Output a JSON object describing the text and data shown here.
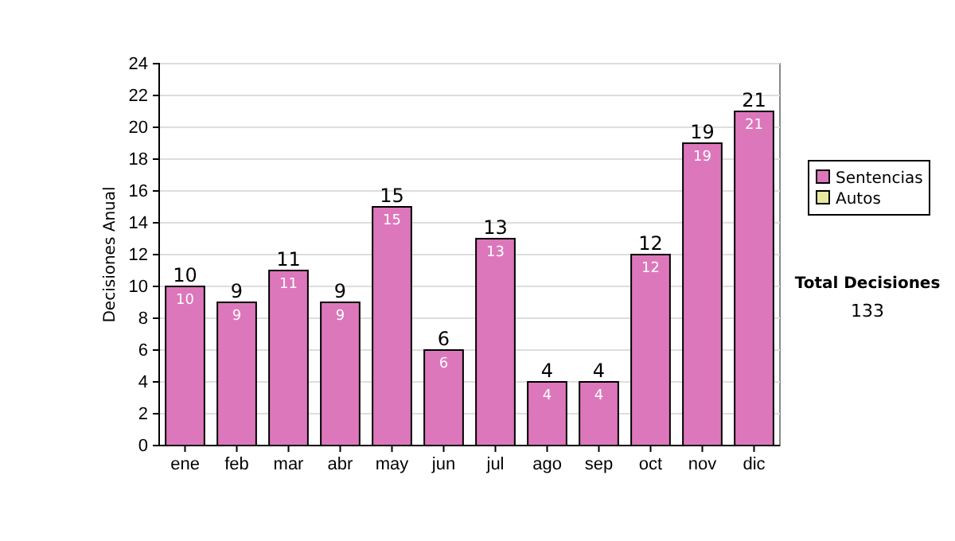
{
  "chart_data": {
    "type": "bar",
    "stacked": true,
    "ylabel": "Decisiones Anual",
    "categories": [
      "ene",
      "feb",
      "mar",
      "abr",
      "may",
      "jun",
      "jul",
      "ago",
      "sep",
      "oct",
      "nov",
      "dic"
    ],
    "series": [
      {
        "name": "Sentencias",
        "color": "#dd77bb",
        "values": [
          10,
          9,
          11,
          9,
          15,
          6,
          13,
          4,
          4,
          12,
          19,
          21
        ],
        "value_labels": [
          "10",
          "9",
          "11",
          "9",
          "15",
          "6",
          "13",
          "4",
          "4",
          "12",
          "19",
          "21"
        ]
      },
      {
        "name": "Autos",
        "color": "#e8e8a0",
        "values": [
          null,
          null,
          null,
          null,
          null,
          null,
          null,
          null,
          null,
          null,
          null,
          null
        ]
      }
    ],
    "totals": [
      "10",
      "9",
      "11",
      "9",
      "15",
      "6",
      "13",
      "4",
      "4",
      "12",
      "19",
      "21"
    ],
    "ylim": [
      0,
      24
    ],
    "yticks": [
      0,
      2,
      4,
      6,
      8,
      10,
      12,
      14,
      16,
      18,
      20,
      22,
      24
    ],
    "grid": "y",
    "legend": "right",
    "annotations": [
      "Total Decisiones",
      "133"
    ]
  }
}
